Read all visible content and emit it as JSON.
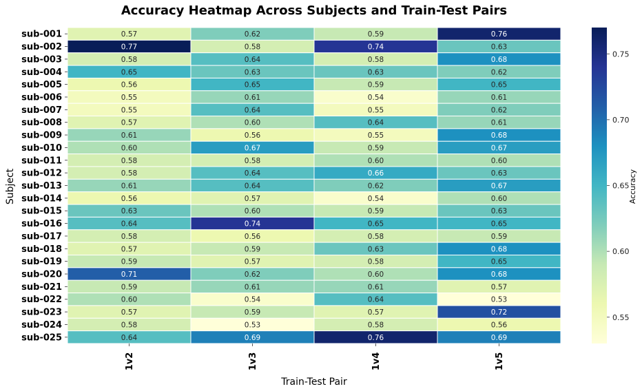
{
  "chart_data": {
    "type": "heatmap",
    "title": "Accuracy Heatmap Across Subjects and Train-Test Pairs",
    "xlabel": "Train-Test Pair",
    "ylabel": "Subject",
    "columns": [
      "1v2",
      "1v3",
      "1v4",
      "1v5"
    ],
    "rows": [
      "sub-001",
      "sub-002",
      "sub-003",
      "sub-004",
      "sub-005",
      "sub-006",
      "sub-007",
      "sub-008",
      "sub-009",
      "sub-010",
      "sub-011",
      "sub-012",
      "sub-013",
      "sub-014",
      "sub-015",
      "sub-016",
      "sub-017",
      "sub-018",
      "sub-019",
      "sub-020",
      "sub-021",
      "sub-022",
      "sub-023",
      "sub-024",
      "sub-025"
    ],
    "values": [
      [
        0.57,
        0.62,
        0.59,
        0.76
      ],
      [
        0.77,
        0.58,
        0.74,
        0.63
      ],
      [
        0.58,
        0.64,
        0.58,
        0.68
      ],
      [
        0.65,
        0.63,
        0.63,
        0.62
      ],
      [
        0.56,
        0.65,
        0.59,
        0.65
      ],
      [
        0.55,
        0.61,
        0.54,
        0.61
      ],
      [
        0.55,
        0.64,
        0.55,
        0.62
      ],
      [
        0.57,
        0.6,
        0.64,
        0.61
      ],
      [
        0.61,
        0.56,
        0.55,
        0.68
      ],
      [
        0.6,
        0.67,
        0.59,
        0.67
      ],
      [
        0.58,
        0.58,
        0.6,
        0.6
      ],
      [
        0.58,
        0.64,
        0.66,
        0.63
      ],
      [
        0.61,
        0.64,
        0.62,
        0.67
      ],
      [
        0.56,
        0.57,
        0.54,
        0.6
      ],
      [
        0.63,
        0.6,
        0.59,
        0.63
      ],
      [
        0.64,
        0.74,
        0.65,
        0.65
      ],
      [
        0.58,
        0.56,
        0.58,
        0.59
      ],
      [
        0.57,
        0.59,
        0.63,
        0.68
      ],
      [
        0.59,
        0.57,
        0.58,
        0.65
      ],
      [
        0.71,
        0.62,
        0.6,
        0.68
      ],
      [
        0.59,
        0.61,
        0.61,
        0.57
      ],
      [
        0.6,
        0.54,
        0.64,
        0.53
      ],
      [
        0.57,
        0.59,
        0.57,
        0.72
      ],
      [
        0.58,
        0.53,
        0.58,
        0.56
      ],
      [
        0.64,
        0.69,
        0.76,
        0.69
      ]
    ],
    "value_range": [
      0.53,
      0.77
    ],
    "colormap": "YlGnBu",
    "colorbar": {
      "label": "Accuracy",
      "ticks": [
        "0.55",
        "0.60",
        "0.65",
        "0.70",
        "0.75"
      ]
    },
    "annotations": "cell values shown to 2 decimals",
    "grid": false,
    "legend": "colorbar-right"
  }
}
